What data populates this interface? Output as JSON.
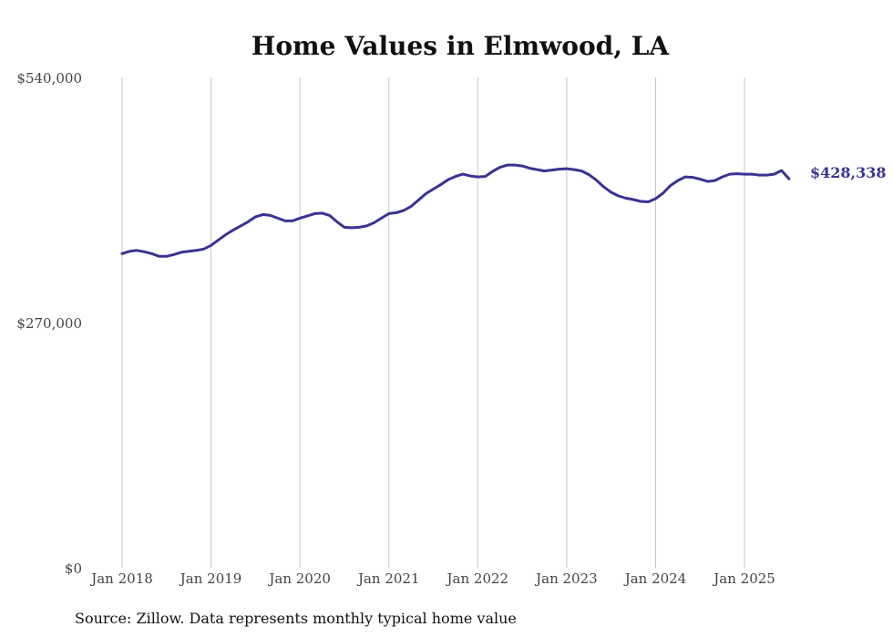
{
  "chart_data": {
    "type": "line",
    "title": "Home Values in Elmwood, LA",
    "xlabel": "",
    "ylabel": "",
    "source": "Source: Zillow. Data represents monthly typical home value",
    "y_ticks": [
      "$540,000",
      "$270,000",
      "$0"
    ],
    "y_tick_values": [
      540000,
      270000,
      0
    ],
    "ylim": [
      0,
      540000
    ],
    "x_ticks": [
      "Jan 2018",
      "Jan 2019",
      "Jan 2020",
      "Jan 2021",
      "Jan 2022",
      "Jan 2023",
      "Jan 2024",
      "Jan 2025"
    ],
    "x_tick_years": [
      2018,
      2019,
      2020,
      2021,
      2022,
      2023,
      2024,
      2025
    ],
    "xlim": [
      2018,
      2025.5833
    ],
    "grid": "vertical",
    "line_color": "#3b3391",
    "end_label": "$428,338",
    "series": [
      {
        "x": [
          2018.0,
          2018.0833,
          2018.1667,
          2018.25,
          2018.3333,
          2018.4167,
          2018.5,
          2018.5833,
          2018.6667,
          2018.75,
          2018.8333,
          2018.9167,
          2019.0,
          2019.0833,
          2019.1667,
          2019.25,
          2019.3333,
          2019.4167,
          2019.5,
          2019.5833,
          2019.6667,
          2019.75,
          2019.8333,
          2019.9167,
          2020.0,
          2020.0833,
          2020.1667,
          2020.25,
          2020.3333,
          2020.4167,
          2020.5,
          2020.5833,
          2020.6667,
          2020.75,
          2020.8333,
          2020.9167,
          2021.0,
          2021.0833,
          2021.1667,
          2021.25,
          2021.3333,
          2021.4167,
          2021.5,
          2021.5833,
          2021.6667,
          2021.75,
          2021.8333,
          2021.9167,
          2022.0,
          2022.0833,
          2022.1667,
          2022.25,
          2022.3333,
          2022.4167,
          2022.5,
          2022.5833,
          2022.6667,
          2022.75,
          2022.8333,
          2022.9167,
          2023.0,
          2023.0833,
          2023.1667,
          2023.25,
          2023.3333,
          2023.4167,
          2023.5,
          2023.5833,
          2023.6667,
          2023.75,
          2023.8333,
          2023.9167,
          2024.0,
          2024.0833,
          2024.1667,
          2024.25,
          2024.3333,
          2024.4167,
          2024.5,
          2024.5833,
          2024.6667,
          2024.75,
          2024.8333,
          2024.9167,
          2025.0,
          2025.0833,
          2025.1667,
          2025.25,
          2025.3333,
          2025.4167,
          2025.5,
          2025.5833
        ],
        "values": [
          346000,
          348500,
          349500,
          348000,
          346000,
          343000,
          343000,
          345000,
          347500,
          348500,
          349500,
          351000,
          355000,
          361000,
          367000,
          372000,
          376500,
          381000,
          386500,
          389000,
          388000,
          385000,
          382000,
          382000,
          385000,
          387500,
          390000,
          390500,
          388000,
          381000,
          375000,
          374500,
          375000,
          376500,
          380000,
          385000,
          390000,
          391000,
          393500,
          398000,
          405000,
          412000,
          417000,
          422000,
          427500,
          431000,
          433500,
          431500,
          430500,
          431000,
          436500,
          441000,
          443500,
          443500,
          442500,
          440000,
          438500,
          437000,
          438000,
          439000,
          439500,
          438500,
          437000,
          433000,
          427000,
          419500,
          413500,
          409500,
          407000,
          405500,
          403500,
          403000,
          406500,
          412500,
          421000,
          426500,
          430500,
          430000,
          428000,
          425500,
          426500,
          430500,
          433500,
          434000,
          433500,
          433500,
          432500,
          432500,
          433500,
          437500,
          428338,
          428338
        ]
      }
    ]
  }
}
